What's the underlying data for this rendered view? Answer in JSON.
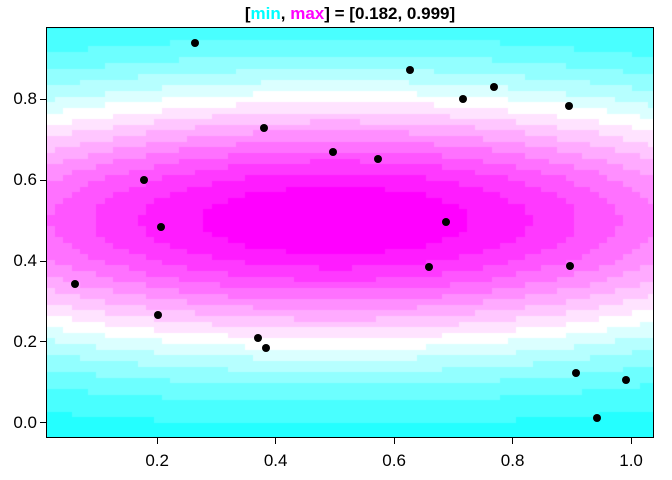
{
  "title": {
    "open_bracket": "[",
    "min_label": "min",
    "separator": ", ",
    "max_label": "max",
    "equals_part": "] = ",
    "range_text": "[0.182, 0.999]"
  },
  "colors": {
    "min_label_color": "#00FFFF",
    "max_label_color": "#FF00FF",
    "title_color": "#000000",
    "point_color": "#000000",
    "axis_color": "#000000",
    "background": "#FFFFFF"
  },
  "chart_data": {
    "type": "filled-contour-with-scatter",
    "title": "[min, max] = [0.182, 0.999]",
    "value_range": {
      "min": 0.182,
      "max": 0.999
    },
    "x_axis": {
      "range": [
        0.014,
        1.037
      ],
      "ticks": [
        0.2,
        0.4,
        0.6,
        0.8,
        1.0
      ],
      "tick_labels": [
        "0.2",
        "0.4",
        "0.6",
        "0.8",
        "1.0"
      ]
    },
    "y_axis": {
      "range": [
        -0.035,
        0.976
      ],
      "ticks": [
        0.0,
        0.2,
        0.4,
        0.6,
        0.8
      ],
      "tick_labels": [
        "0.0",
        "0.2",
        "0.4",
        "0.6",
        "0.8"
      ]
    },
    "surface": {
      "description": "elliptical bump: f = base + amplitude*exp(-(((x-cx)/sigma_x)^2 + ((y-cy)/sigma_y)^2))",
      "center": [
        0.5,
        0.5
      ],
      "sigma_x": 0.916,
      "sigma_y": 0.33,
      "base": 0.17,
      "amplitude": 0.83,
      "grid_step": 0.0139,
      "levels": {
        "start": 0.2,
        "step": 0.05,
        "end": 0.95
      }
    },
    "palette": {
      "low": "#00FFFF",
      "mid": "#FFFFFF",
      "high": "#FF00FF",
      "n_bands": 17,
      "white_band_index": 7
    },
    "points": [
      [
        0.264,
        0.94
      ],
      [
        0.38,
        0.73
      ],
      [
        0.497,
        0.67
      ],
      [
        0.178,
        0.6
      ],
      [
        0.206,
        0.483
      ],
      [
        0.627,
        0.873
      ],
      [
        0.768,
        0.831
      ],
      [
        0.717,
        0.801
      ],
      [
        0.895,
        0.782
      ],
      [
        0.572,
        0.653
      ],
      [
        0.687,
        0.496
      ],
      [
        0.061,
        0.342
      ],
      [
        0.202,
        0.267
      ],
      [
        0.37,
        0.21
      ],
      [
        0.384,
        0.186
      ],
      [
        0.659,
        0.384
      ],
      [
        0.897,
        0.387
      ],
      [
        0.907,
        0.122
      ],
      [
        0.991,
        0.107
      ],
      [
        0.943,
        0.012
      ]
    ],
    "point_style": {
      "color": "#000000",
      "radius_px": 4
    }
  }
}
